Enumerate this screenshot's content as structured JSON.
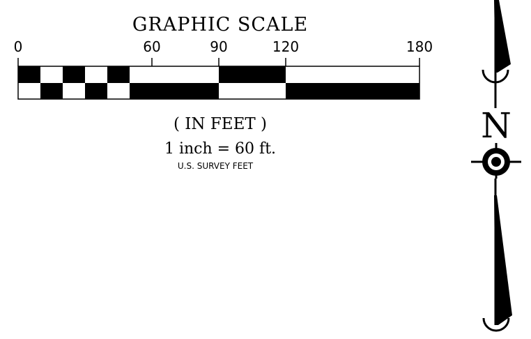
{
  "scale": {
    "title": "GRAPHIC SCALE",
    "tick_labels": [
      "0",
      "60",
      "90",
      "120",
      "180"
    ],
    "tick_values": [
      0,
      60,
      90,
      120,
      180
    ],
    "max_value": 180,
    "units_label": "( IN FEET )",
    "ratio_label": "1 inch = 60 ft.",
    "survey_label": "U.S. SURVEY FEET",
    "segments": [
      {
        "from": 0,
        "to": 10,
        "top": "black",
        "bottom": "white"
      },
      {
        "from": 10,
        "to": 20,
        "top": "white",
        "bottom": "black"
      },
      {
        "from": 20,
        "to": 30,
        "top": "black",
        "bottom": "white"
      },
      {
        "from": 30,
        "to": 40,
        "top": "white",
        "bottom": "black"
      },
      {
        "from": 40,
        "to": 50,
        "top": "black",
        "bottom": "white"
      },
      {
        "from": 50,
        "to": 60,
        "top": "white",
        "bottom": "black"
      },
      {
        "from": 60,
        "to": 90,
        "top": "white",
        "bottom": "black"
      },
      {
        "from": 90,
        "to": 120,
        "top": "black",
        "bottom": "white"
      },
      {
        "from": 120,
        "to": 180,
        "top": "white",
        "bottom": "black"
      }
    ]
  },
  "north_arrow": {
    "letter": "N",
    "symbol": "north-arrow-icon"
  },
  "colors": {
    "ink": "#000000",
    "paper": "#ffffff"
  }
}
